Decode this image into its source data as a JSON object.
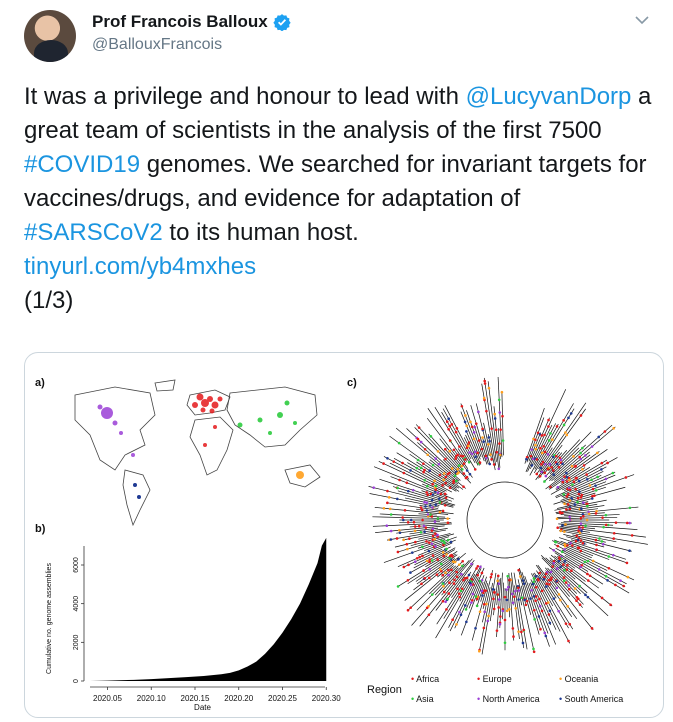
{
  "author": {
    "name": "Prof Francois Balloux",
    "handle": "@BallouxFrancois",
    "verified": true
  },
  "tweet": {
    "text_1": "It was a privilege and honour to lead with ",
    "mention": "@LucyvanDorp",
    "text_2": " a great team of scientists in the analysis of the first 7500 ",
    "hashtag_1": "#COVID19",
    "text_3": " genomes. We searched for invariant targets for vaccines/drugs, and evidence for adaptation of ",
    "hashtag_2": "#SARSCoV2",
    "text_4": " to its human host.",
    "link": "tinyurl.com/yb4mxhes",
    "thread": "(1/3)"
  },
  "figure": {
    "panel_a": "a)",
    "panel_b": "b)",
    "panel_c": "c)",
    "legend_title": "Region",
    "regions": [
      {
        "name": "Africa",
        "color": "#e41a1c"
      },
      {
        "name": "Europe",
        "color": "#e41a1c"
      },
      {
        "name": "Oceania",
        "color": "#ff9f1c"
      },
      {
        "name": "Asia",
        "color": "#2ecc40"
      },
      {
        "name": "North America",
        "color": "#9b3fd6"
      },
      {
        "name": "South America",
        "color": "#1f3a93"
      }
    ]
  },
  "chart_data": {
    "type": "area",
    "xlabel": "Date",
    "ylabel": "Cumulative no. genome assemblies",
    "x_ticks": [
      "2020.05",
      "2020.10",
      "2020.15",
      "2020.20",
      "2020.25",
      "2020.30"
    ],
    "y_ticks": [
      "0",
      "2000",
      "4000",
      "6000"
    ],
    "xlim": [
      2020.03,
      2020.31
    ],
    "ylim": [
      0,
      7500
    ],
    "x": [
      2020.03,
      2020.05,
      2020.08,
      2020.1,
      2020.12,
      2020.14,
      2020.16,
      2020.18,
      2020.19,
      2020.2,
      2020.21,
      2020.22,
      2020.23,
      2020.24,
      2020.25,
      2020.26,
      2020.27,
      2020.28,
      2020.29,
      2020.295,
      2020.3
    ],
    "values": [
      0,
      20,
      60,
      100,
      150,
      200,
      260,
      350,
      420,
      550,
      750,
      1000,
      1400,
      1900,
      2500,
      3200,
      4000,
      5000,
      6100,
      7000,
      7400
    ]
  }
}
